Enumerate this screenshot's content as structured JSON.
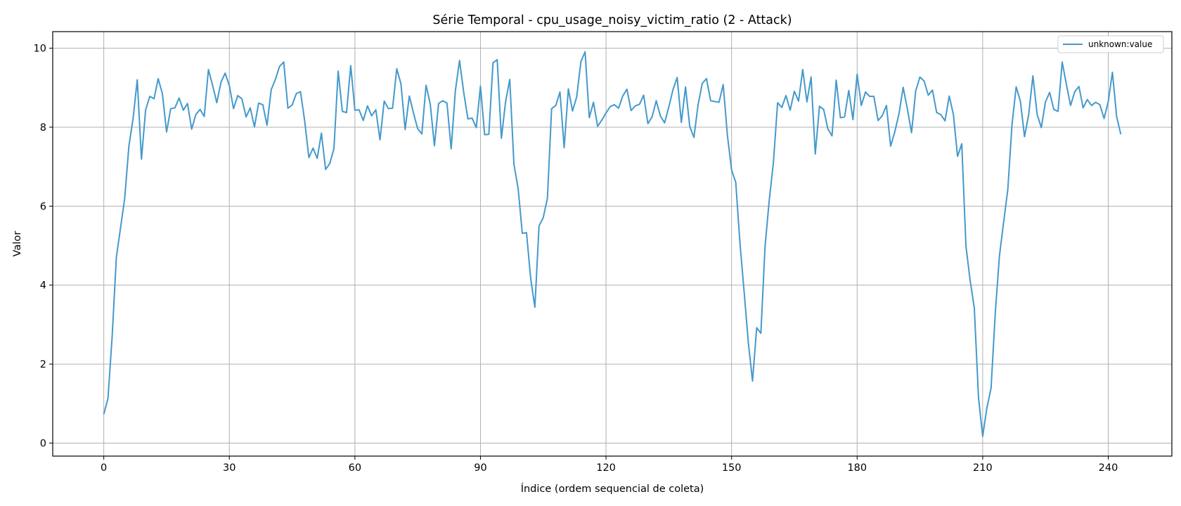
{
  "chart_data": {
    "type": "line",
    "title": "Série Temporal - cpu_usage_noisy_victim_ratio (2 - Attack)",
    "xlabel": "Índice (ordem sequencial de coleta)",
    "ylabel": "Valor",
    "xlim": [
      -12.2,
      255.2
    ],
    "ylim": [
      -0.33,
      10.42
    ],
    "xticks": [
      0,
      30,
      60,
      90,
      120,
      150,
      180,
      210,
      240
    ],
    "yticks": [
      0,
      2,
      4,
      6,
      8,
      10
    ],
    "grid": true,
    "legend_position": "top-right",
    "series": [
      {
        "name": "unknown:value",
        "color": "#4499cc",
        "x_start": 0,
        "x_step": 1,
        "values": [
          0.73,
          1.13,
          2.7,
          4.7,
          5.45,
          6.2,
          7.52,
          8.22,
          9.2,
          7.19,
          8.44,
          8.78,
          8.72,
          9.23,
          8.85,
          7.88,
          8.47,
          8.49,
          8.74,
          8.43,
          8.6,
          7.95,
          8.32,
          8.45,
          8.27,
          9.46,
          9.06,
          8.62,
          9.14,
          9.37,
          9.05,
          8.47,
          8.8,
          8.72,
          8.26,
          8.49,
          8.01,
          8.61,
          8.57,
          8.05,
          8.95,
          9.21,
          9.54,
          9.65,
          8.48,
          8.56,
          8.85,
          8.9,
          8.16,
          7.23,
          7.47,
          7.21,
          7.85,
          6.93,
          7.08,
          7.46,
          9.42,
          8.4,
          8.37,
          9.56,
          8.43,
          8.44,
          8.17,
          8.54,
          8.29,
          8.44,
          7.68,
          8.66,
          8.47,
          8.48,
          9.48,
          9.1,
          7.94,
          8.79,
          8.36,
          7.96,
          7.83,
          9.06,
          8.59,
          7.53,
          8.6,
          8.67,
          8.61,
          7.45,
          8.92,
          9.69,
          8.88,
          8.21,
          8.23,
          7.99,
          9.04,
          7.81,
          7.82,
          9.63,
          9.71,
          7.72,
          8.64,
          9.21,
          7.06,
          6.45,
          5.31,
          5.33,
          4.17,
          3.44,
          5.5,
          5.71,
          6.2,
          8.47,
          8.55,
          8.89,
          7.48,
          8.97,
          8.41,
          8.77,
          9.66,
          9.91,
          8.24,
          8.63,
          8.02,
          8.18,
          8.36,
          8.52,
          8.57,
          8.48,
          8.79,
          8.96,
          8.42,
          8.54,
          8.58,
          8.81,
          8.09,
          8.26,
          8.67,
          8.28,
          8.11,
          8.51,
          8.95,
          9.26,
          8.12,
          9.02,
          8.02,
          7.74,
          8.57,
          9.11,
          9.23,
          8.67,
          8.65,
          8.63,
          9.08,
          7.8,
          6.92,
          6.6,
          5.07,
          3.83,
          2.55,
          1.57,
          2.92,
          2.78,
          4.98,
          6.15,
          7.11,
          8.62,
          8.5,
          8.8,
          8.43,
          8.91,
          8.66,
          9.46,
          8.64,
          9.27,
          7.32,
          8.53,
          8.45,
          7.96,
          7.78,
          9.19,
          8.24,
          8.26,
          8.93,
          8.19,
          9.34,
          8.55,
          8.89,
          8.78,
          8.78,
          8.17,
          8.29,
          8.55,
          7.52,
          7.88,
          8.34,
          9.01,
          8.46,
          7.86,
          8.92,
          9.27,
          9.17,
          8.81,
          8.94,
          8.37,
          8.32,
          8.16,
          8.79,
          8.32,
          7.26,
          7.58,
          4.99,
          4.12,
          3.42,
          1.15,
          0.17,
          0.89,
          1.39,
          3.28,
          4.74,
          5.59,
          6.42,
          8.06,
          9.02,
          8.66,
          7.76,
          8.33,
          9.3,
          8.33,
          7.99,
          8.64,
          8.88,
          8.45,
          8.4,
          9.65,
          9.08,
          8.55,
          8.9,
          9.03,
          8.49,
          8.7,
          8.55,
          8.63,
          8.57,
          8.22,
          8.65,
          9.39,
          8.27,
          7.82
        ]
      }
    ]
  }
}
